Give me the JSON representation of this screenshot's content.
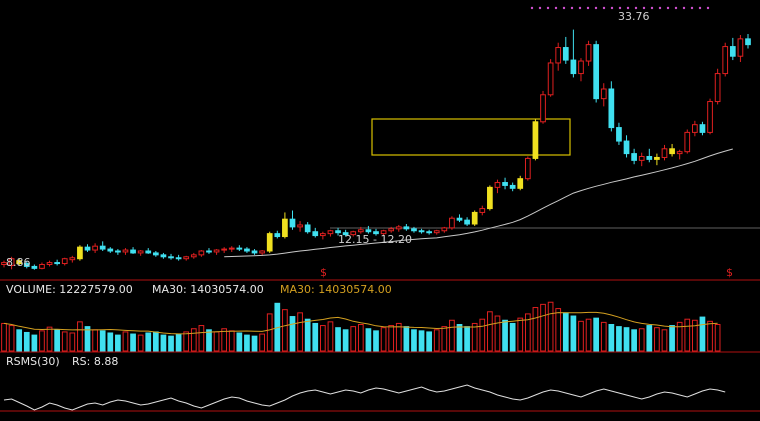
{
  "chart_data": [
    {
      "type": "candlestick",
      "title": "",
      "annotations": {
        "high_label": "33.76",
        "low_label": "8.86",
        "range_label": "12.15 - 12.20",
        "marker": "$"
      },
      "ma_line": "MA30",
      "colors": {
        "up": "#e02020",
        "down": "#40e0f0",
        "highlight": "#f0e020",
        "ma": "#c8c8c8",
        "box": "#d8c000",
        "peak_dots": "#d050d0"
      },
      "price_range": [
        8.0,
        36.0
      ],
      "candles": [
        {
          "o": 9.4,
          "h": 9.8,
          "l": 9.1,
          "c": 9.6
        },
        {
          "o": 9.3,
          "h": 10.2,
          "l": 8.9,
          "c": 10.0
        },
        {
          "o": 9.8,
          "h": 10.0,
          "l": 9.3,
          "c": 9.5
        },
        {
          "o": 9.5,
          "h": 9.7,
          "l": 9.0,
          "c": 9.2
        },
        {
          "o": 9.2,
          "h": 9.4,
          "l": 8.86,
          "c": 9.0
        },
        {
          "o": 9.0,
          "h": 9.6,
          "l": 8.9,
          "c": 9.4
        },
        {
          "o": 9.4,
          "h": 9.8,
          "l": 9.2,
          "c": 9.6
        },
        {
          "o": 9.6,
          "h": 9.9,
          "l": 9.3,
          "c": 9.5
        },
        {
          "o": 9.5,
          "h": 10.1,
          "l": 9.3,
          "c": 10.0
        },
        {
          "o": 9.9,
          "h": 10.3,
          "l": 9.6,
          "c": 10.1
        },
        {
          "o": 10.0,
          "h": 11.4,
          "l": 9.8,
          "c": 11.2
        },
        {
          "o": 11.2,
          "h": 11.5,
          "l": 10.7,
          "c": 10.9
        },
        {
          "o": 10.9,
          "h": 11.6,
          "l": 10.6,
          "c": 11.3
        },
        {
          "o": 11.3,
          "h": 11.8,
          "l": 10.8,
          "c": 11.0
        },
        {
          "o": 11.0,
          "h": 11.2,
          "l": 10.6,
          "c": 10.8
        },
        {
          "o": 10.8,
          "h": 11.0,
          "l": 10.4,
          "c": 10.7
        },
        {
          "o": 10.7,
          "h": 11.1,
          "l": 10.4,
          "c": 10.9
        },
        {
          "o": 10.9,
          "h": 11.2,
          "l": 10.5,
          "c": 10.6
        },
        {
          "o": 10.6,
          "h": 10.9,
          "l": 10.3,
          "c": 10.8
        },
        {
          "o": 10.8,
          "h": 11.1,
          "l": 10.5,
          "c": 10.6
        },
        {
          "o": 10.6,
          "h": 10.8,
          "l": 10.2,
          "c": 10.4
        },
        {
          "o": 10.4,
          "h": 10.6,
          "l": 10.0,
          "c": 10.2
        },
        {
          "o": 10.2,
          "h": 10.5,
          "l": 9.9,
          "c": 10.1
        },
        {
          "o": 10.1,
          "h": 10.4,
          "l": 9.8,
          "c": 10.0
        },
        {
          "o": 10.0,
          "h": 10.3,
          "l": 9.8,
          "c": 10.2
        },
        {
          "o": 10.2,
          "h": 10.6,
          "l": 10.0,
          "c": 10.4
        },
        {
          "o": 10.4,
          "h": 10.9,
          "l": 10.2,
          "c": 10.8
        },
        {
          "o": 10.8,
          "h": 11.1,
          "l": 10.5,
          "c": 10.7
        },
        {
          "o": 10.7,
          "h": 11.0,
          "l": 10.4,
          "c": 10.9
        },
        {
          "o": 10.9,
          "h": 11.2,
          "l": 10.6,
          "c": 11.0
        },
        {
          "o": 11.0,
          "h": 11.3,
          "l": 10.7,
          "c": 11.1
        },
        {
          "o": 11.1,
          "h": 11.4,
          "l": 10.8,
          "c": 11.0
        },
        {
          "o": 11.0,
          "h": 11.2,
          "l": 10.6,
          "c": 10.8
        },
        {
          "o": 10.8,
          "h": 11.0,
          "l": 10.4,
          "c": 10.6
        },
        {
          "o": 10.6,
          "h": 10.9,
          "l": 10.3,
          "c": 10.8
        },
        {
          "o": 10.8,
          "h": 12.8,
          "l": 10.6,
          "c": 12.6
        },
        {
          "o": 12.6,
          "h": 12.9,
          "l": 12.1,
          "c": 12.3
        },
        {
          "o": 12.3,
          "h": 14.8,
          "l": 12.1,
          "c": 14.1
        },
        {
          "o": 14.1,
          "h": 15.0,
          "l": 13.0,
          "c": 13.3
        },
        {
          "o": 13.3,
          "h": 13.9,
          "l": 12.8,
          "c": 13.5
        },
        {
          "o": 13.5,
          "h": 13.8,
          "l": 12.6,
          "c": 12.8
        },
        {
          "o": 12.8,
          "h": 13.2,
          "l": 12.2,
          "c": 12.4
        },
        {
          "o": 12.4,
          "h": 12.8,
          "l": 12.0,
          "c": 12.6
        },
        {
          "o": 12.6,
          "h": 13.0,
          "l": 12.3,
          "c": 12.9
        },
        {
          "o": 12.9,
          "h": 13.2,
          "l": 12.4,
          "c": 12.7
        },
        {
          "o": 12.7,
          "h": 13.0,
          "l": 12.3,
          "c": 12.5
        },
        {
          "o": 12.5,
          "h": 12.9,
          "l": 12.3,
          "c": 12.8
        },
        {
          "o": 12.8,
          "h": 13.3,
          "l": 12.6,
          "c": 13.0
        },
        {
          "o": 13.0,
          "h": 13.4,
          "l": 12.6,
          "c": 12.8
        },
        {
          "o": 12.8,
          "h": 13.1,
          "l": 12.4,
          "c": 12.6
        },
        {
          "o": 12.6,
          "h": 13.0,
          "l": 12.4,
          "c": 12.9
        },
        {
          "o": 12.9,
          "h": 13.3,
          "l": 12.7,
          "c": 13.1
        },
        {
          "o": 13.1,
          "h": 13.5,
          "l": 12.8,
          "c": 13.3
        },
        {
          "o": 13.3,
          "h": 13.6,
          "l": 12.9,
          "c": 13.1
        },
        {
          "o": 13.1,
          "h": 13.3,
          "l": 12.7,
          "c": 12.9
        },
        {
          "o": 12.9,
          "h": 13.1,
          "l": 12.6,
          "c": 12.8
        },
        {
          "o": 12.8,
          "h": 13.0,
          "l": 12.5,
          "c": 12.7
        },
        {
          "o": 12.7,
          "h": 13.0,
          "l": 12.5,
          "c": 12.9
        },
        {
          "o": 12.9,
          "h": 13.3,
          "l": 12.7,
          "c": 13.2
        },
        {
          "o": 13.2,
          "h": 14.4,
          "l": 13.0,
          "c": 14.2
        },
        {
          "o": 14.2,
          "h": 14.6,
          "l": 13.8,
          "c": 14.0
        },
        {
          "o": 14.0,
          "h": 14.3,
          "l": 13.4,
          "c": 13.6
        },
        {
          "o": 13.6,
          "h": 15.0,
          "l": 13.4,
          "c": 14.8
        },
        {
          "o": 14.8,
          "h": 15.5,
          "l": 14.5,
          "c": 15.2
        },
        {
          "o": 15.2,
          "h": 17.6,
          "l": 15.0,
          "c": 17.4
        },
        {
          "o": 17.4,
          "h": 18.2,
          "l": 16.8,
          "c": 17.9
        },
        {
          "o": 17.9,
          "h": 18.4,
          "l": 17.2,
          "c": 17.6
        },
        {
          "o": 17.6,
          "h": 17.9,
          "l": 17.0,
          "c": 17.3
        },
        {
          "o": 17.3,
          "h": 18.6,
          "l": 17.1,
          "c": 18.3
        },
        {
          "o": 18.3,
          "h": 20.6,
          "l": 18.1,
          "c": 20.4
        },
        {
          "o": 20.4,
          "h": 24.5,
          "l": 20.2,
          "c": 24.2
        },
        {
          "o": 24.2,
          "h": 27.4,
          "l": 24.0,
          "c": 27.0
        },
        {
          "o": 27.0,
          "h": 30.7,
          "l": 26.8,
          "c": 30.3
        },
        {
          "o": 30.3,
          "h": 32.4,
          "l": 29.5,
          "c": 31.9
        },
        {
          "o": 31.9,
          "h": 33.0,
          "l": 30.2,
          "c": 30.6
        },
        {
          "o": 30.6,
          "h": 33.76,
          "l": 28.8,
          "c": 29.2
        },
        {
          "o": 29.2,
          "h": 30.8,
          "l": 28.4,
          "c": 30.5
        },
        {
          "o": 30.5,
          "h": 32.6,
          "l": 30.0,
          "c": 32.2
        },
        {
          "o": 32.2,
          "h": 32.6,
          "l": 26.2,
          "c": 26.6
        },
        {
          "o": 26.6,
          "h": 28.2,
          "l": 25.8,
          "c": 27.6
        },
        {
          "o": 27.6,
          "h": 28.4,
          "l": 23.2,
          "c": 23.6
        },
        {
          "o": 23.6,
          "h": 24.1,
          "l": 21.8,
          "c": 22.2
        },
        {
          "o": 22.2,
          "h": 22.8,
          "l": 20.5,
          "c": 20.9
        },
        {
          "o": 20.9,
          "h": 21.4,
          "l": 19.8,
          "c": 20.2
        },
        {
          "o": 20.2,
          "h": 21.0,
          "l": 19.6,
          "c": 20.6
        },
        {
          "o": 20.6,
          "h": 21.4,
          "l": 20.0,
          "c": 20.3
        },
        {
          "o": 20.3,
          "h": 20.9,
          "l": 19.7,
          "c": 20.5
        },
        {
          "o": 20.5,
          "h": 21.8,
          "l": 20.2,
          "c": 21.4
        },
        {
          "o": 21.4,
          "h": 21.9,
          "l": 20.6,
          "c": 20.9
        },
        {
          "o": 20.9,
          "h": 21.3,
          "l": 20.3,
          "c": 21.1
        },
        {
          "o": 21.1,
          "h": 23.4,
          "l": 20.9,
          "c": 23.1
        },
        {
          "o": 23.1,
          "h": 24.3,
          "l": 22.7,
          "c": 23.9
        },
        {
          "o": 23.9,
          "h": 24.2,
          "l": 22.8,
          "c": 23.1
        },
        {
          "o": 23.1,
          "h": 26.6,
          "l": 22.9,
          "c": 26.3
        },
        {
          "o": 26.3,
          "h": 29.7,
          "l": 26.0,
          "c": 29.2
        },
        {
          "o": 29.2,
          "h": 32.4,
          "l": 28.9,
          "c": 32.0
        },
        {
          "o": 32.0,
          "h": 32.9,
          "l": 30.6,
          "c": 31.0
        },
        {
          "o": 31.0,
          "h": 33.2,
          "l": 30.4,
          "c": 32.8
        },
        {
          "o": 32.8,
          "h": 33.3,
          "l": 31.8,
          "c": 32.2
        }
      ],
      "highlight_candles": [
        2,
        10,
        35,
        37,
        62,
        64,
        68,
        70,
        86,
        88
      ],
      "ma30": [
        null,
        null,
        null,
        null,
        null,
        null,
        null,
        null,
        null,
        null,
        null,
        null,
        null,
        null,
        null,
        null,
        null,
        null,
        null,
        null,
        null,
        null,
        null,
        null,
        null,
        null,
        null,
        null,
        null,
        10.2,
        10.23,
        10.26,
        10.28,
        10.31,
        10.34,
        10.4,
        10.48,
        10.58,
        10.7,
        10.8,
        10.88,
        10.98,
        11.06,
        11.16,
        11.25,
        11.33,
        11.4,
        11.48,
        11.56,
        11.63,
        11.7,
        11.78,
        11.86,
        11.94,
        12.0,
        12.06,
        12.12,
        12.16,
        12.27,
        12.38,
        12.49,
        12.62,
        12.78,
        12.96,
        13.16,
        13.36,
        13.56,
        13.78,
        14.06,
        14.42,
        14.82,
        15.24,
        15.64,
        16.02,
        16.42,
        16.8,
        17.06,
        17.3,
        17.52,
        17.72,
        17.92,
        18.1,
        18.28,
        18.48,
        18.66,
        18.84,
        19.02,
        19.22,
        19.42,
        19.64,
        19.86,
        20.1,
        20.38,
        20.66,
        20.92,
        21.16,
        21.38
      ]
    },
    {
      "type": "bar",
      "title": "VOLUME: 12227579.00 MA30: 14030574.00",
      "legend_ma": "MA30: 14030574.00",
      "volumes": [
        52,
        48,
        40,
        35,
        30,
        38,
        45,
        40,
        36,
        34,
        55,
        46,
        40,
        38,
        34,
        30,
        36,
        32,
        30,
        34,
        36,
        30,
        28,
        32,
        36,
        42,
        48,
        40,
        36,
        42,
        38,
        34,
        30,
        28,
        32,
        70,
        90,
        78,
        65,
        72,
        60,
        52,
        48,
        55,
        44,
        40,
        46,
        50,
        42,
        38,
        44,
        48,
        52,
        46,
        40,
        38,
        36,
        40,
        46,
        58,
        50,
        46,
        52,
        60,
        74,
        66,
        58,
        52,
        62,
        70,
        82,
        88,
        92,
        80,
        72,
        66,
        56,
        60,
        62,
        54,
        50,
        46,
        44,
        40,
        42,
        48,
        44,
        40,
        48,
        54,
        60,
        58,
        64,
        56,
        50
      ],
      "volume_unit": "x100000",
      "y_max": 100
    },
    {
      "type": "line",
      "title": "RSMS(30) RS: 8.88",
      "values": [
        40,
        42,
        35,
        28,
        20,
        26,
        34,
        30,
        24,
        20,
        26,
        32,
        34,
        30,
        36,
        40,
        38,
        34,
        30,
        32,
        36,
        40,
        44,
        38,
        34,
        28,
        24,
        30,
        36,
        42,
        46,
        44,
        38,
        34,
        30,
        28,
        34,
        40,
        48,
        54,
        58,
        60,
        56,
        52,
        56,
        60,
        58,
        54,
        60,
        64,
        62,
        58,
        54,
        58,
        62,
        66,
        60,
        56,
        58,
        62,
        66,
        70,
        64,
        60,
        56,
        50,
        46,
        42,
        40,
        44,
        50,
        56,
        60,
        58,
        54,
        50,
        46,
        52,
        58,
        62,
        58,
        54,
        50,
        46,
        42,
        46,
        52,
        56,
        54,
        50,
        46,
        52,
        58,
        62,
        60,
        56
      ],
      "y_range": [
        0,
        100
      ]
    }
  ],
  "labels": {
    "top_title": "",
    "high": "33.76",
    "low": "8.86",
    "range": "12.15 - 12.20",
    "marker_left": "$",
    "marker_right": "$",
    "vol_title": "VOLUME: 12227579.00",
    "vol_ma_a": "MA30: 14030574.00",
    "vol_ma_b": "MA30: 14030574.00",
    "rs_title": "RSMS(30)",
    "rs_value": "RS: 8.88"
  }
}
